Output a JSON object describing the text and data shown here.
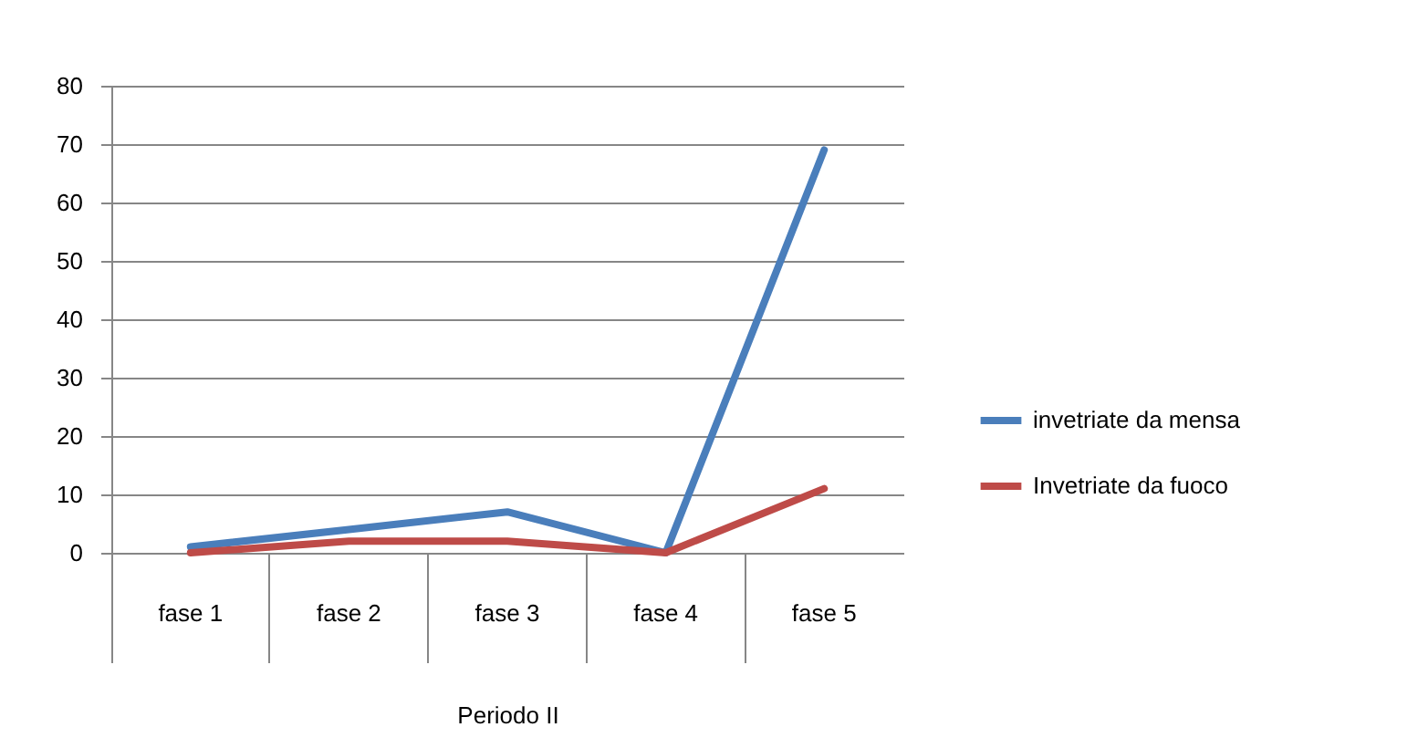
{
  "chart_data": {
    "type": "line",
    "xlabel": "Periodo II",
    "categories": [
      "fase 1",
      "fase 2",
      "fase 3",
      "fase 4",
      "fase 5"
    ],
    "series": [
      {
        "name": "invetriate da mensa",
        "color": "#4a7ebb",
        "values": [
          1,
          4,
          7,
          0,
          69
        ]
      },
      {
        "name": "Invetriate da fuoco",
        "color": "#be4b48",
        "values": [
          0,
          2,
          2,
          0,
          11
        ]
      }
    ],
    "ylim": [
      0,
      80
    ],
    "yticks": [
      0,
      10,
      20,
      30,
      40,
      50,
      60,
      70,
      80
    ],
    "grid": "y",
    "legend": "right",
    "line_style": "solid"
  }
}
